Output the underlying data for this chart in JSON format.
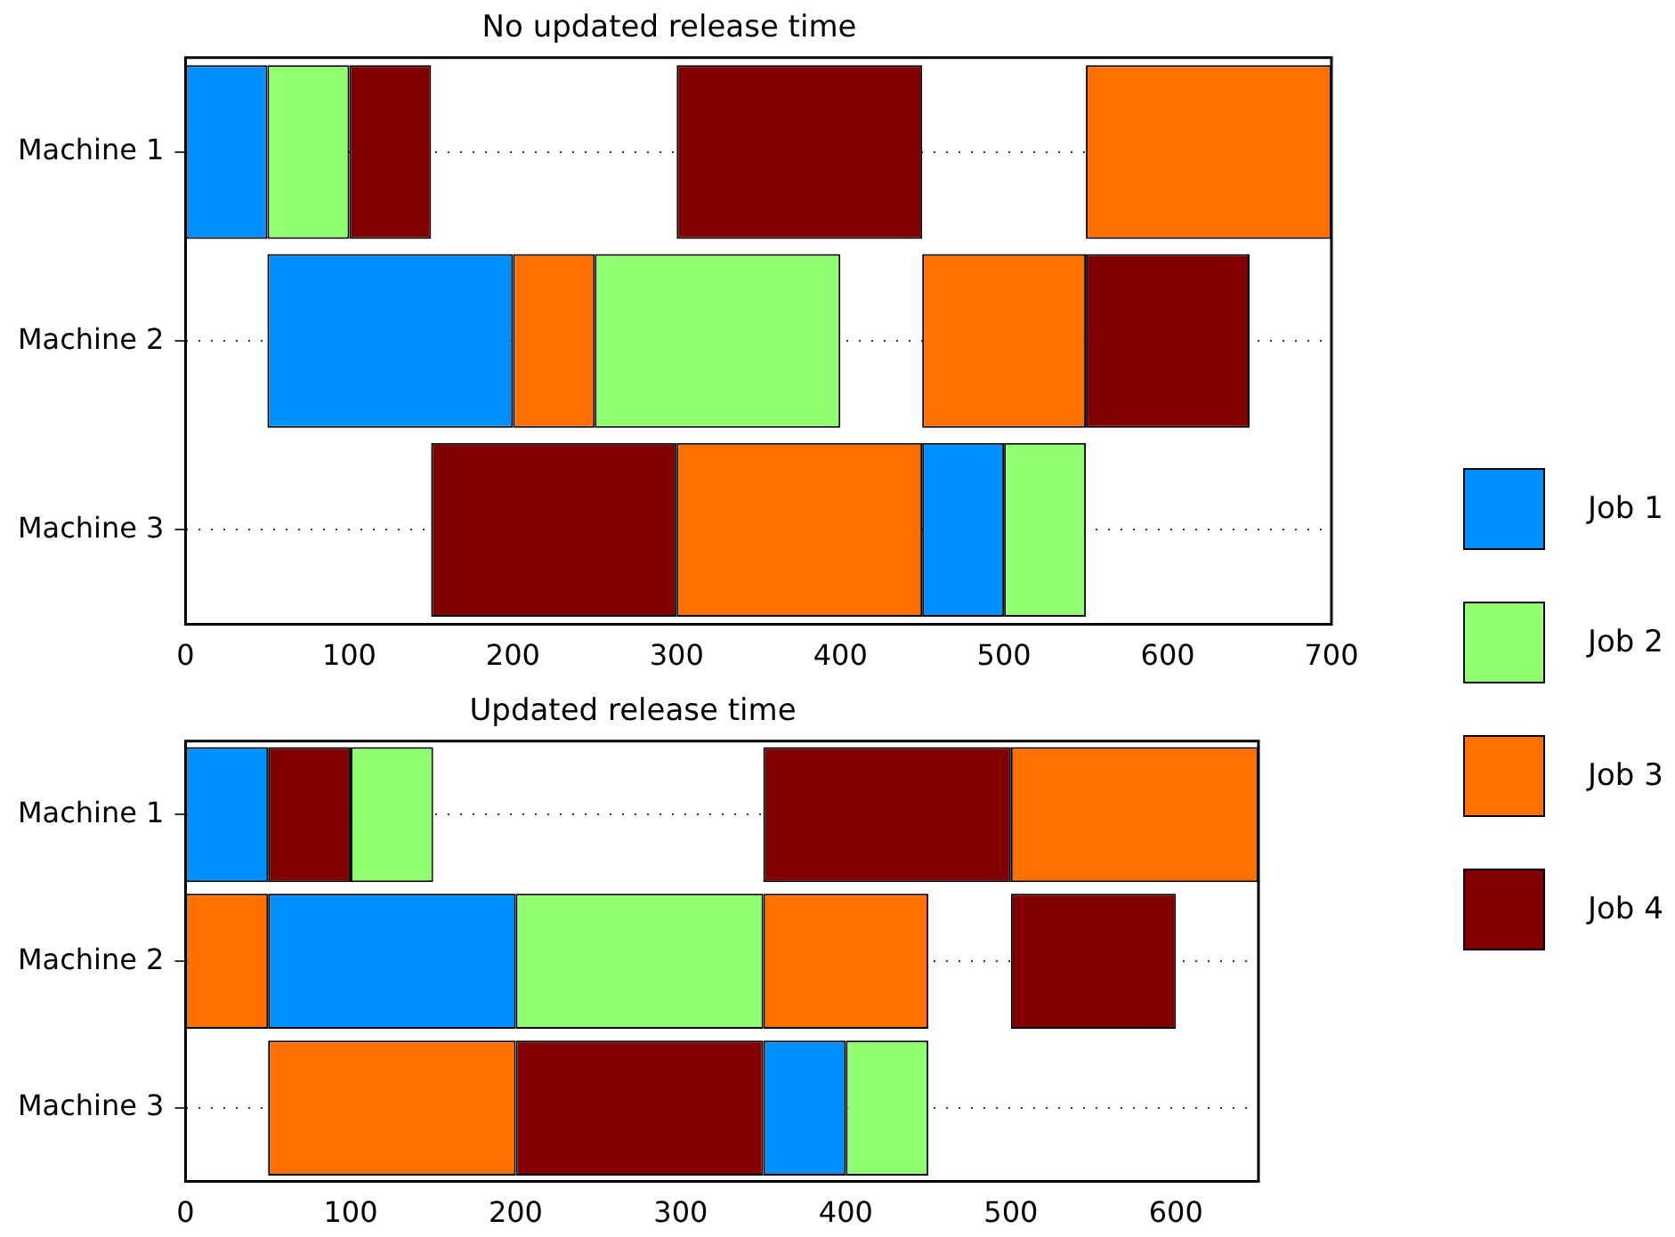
{
  "chart_data": [
    {
      "type": "bar",
      "orientation": "horizontal",
      "title": "No updated release time",
      "categories": [
        "Machine 1",
        "Machine 2",
        "Machine 3"
      ],
      "xlim": [
        0,
        700
      ],
      "xticks": [
        0,
        100,
        200,
        300,
        400,
        500,
        600,
        700
      ],
      "grid": "y",
      "legend": "right",
      "series": [
        {
          "name": "Job 1",
          "color": "#0090ff",
          "base": [
            0,
            50,
            450
          ],
          "values": [
            50,
            150,
            50
          ]
        },
        {
          "name": "Job 2",
          "color": "#90ff70",
          "base": [
            50,
            250,
            500
          ],
          "values": [
            50,
            150,
            50
          ]
        },
        {
          "name": "Job 3",
          "color": "#ff7000",
          "base": [
            550,
            200,
            300
          ],
          "values": [
            150,
            50,
            150
          ]
        },
        {
          "name": "Job 4",
          "color": "#800000",
          "base": [
            100,
            550,
            150
          ],
          "values": [
            50,
            100,
            150
          ]
        },
        {
          "color": "#800000",
          "base": [
            300,
            null,
            null
          ],
          "values": [
            150,
            null,
            null
          ]
        },
        {
          "color": "#ff7000",
          "base": [
            null,
            450,
            null
          ],
          "values": [
            null,
            100,
            null
          ]
        }
      ]
    },
    {
      "type": "bar",
      "orientation": "horizontal",
      "title": "Updated release time",
      "categories": [
        "Machine 1",
        "Machine 2",
        "Machine 3"
      ],
      "xlim": [
        0,
        650
      ],
      "xticks": [
        0,
        100,
        200,
        300,
        400,
        500,
        600
      ],
      "grid": "y",
      "series": [
        {
          "color": "#0090ff",
          "base": [
            0,
            50,
            350
          ],
          "values": [
            50,
            150,
            50
          ]
        },
        {
          "color": "#90ff70",
          "base": [
            100,
            200,
            400
          ],
          "values": [
            50,
            150,
            50
          ]
        },
        {
          "color": "#ff7000",
          "base": [
            500,
            0,
            50
          ],
          "values": [
            150,
            50,
            150
          ]
        },
        {
          "color": "#800000",
          "base": [
            50,
            500,
            200
          ],
          "values": [
            50,
            100,
            150
          ]
        },
        {
          "color": "#800000",
          "base": [
            350,
            null,
            null
          ],
          "values": [
            150,
            null,
            null
          ]
        },
        {
          "color": "#ff7000",
          "base": [
            null,
            350,
            null
          ],
          "values": [
            null,
            100,
            null
          ]
        }
      ]
    }
  ]
}
